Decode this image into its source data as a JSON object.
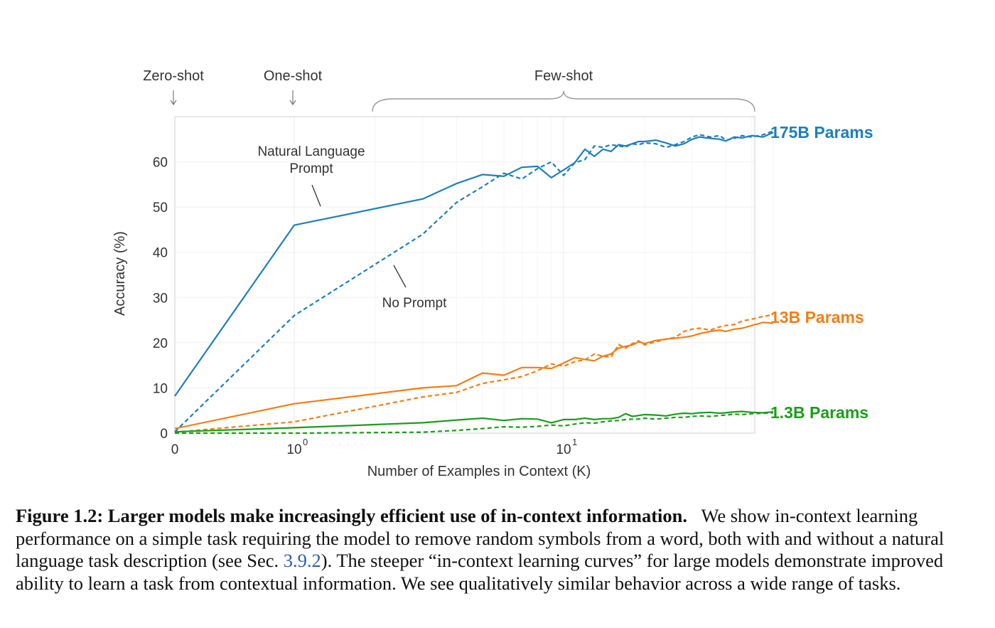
{
  "chart_data": {
    "type": "line",
    "xlabel": "Number of Examples in Context  (K)",
    "ylabel": "Accuracy (%)",
    "x_scale": "symlog",
    "xlim": [
      0,
      60
    ],
    "ylim": [
      0,
      70
    ],
    "x_ticks": [
      {
        "value": 0,
        "label": "0"
      },
      {
        "value": 1,
        "label": "10",
        "sup": "0"
      },
      {
        "value": 10,
        "label": "10",
        "sup": "1"
      }
    ],
    "y_ticks": [
      0,
      10,
      20,
      30,
      40,
      50,
      60
    ],
    "grid": true,
    "regions": [
      {
        "label": "Zero-shot",
        "x": 0,
        "style": "arrow"
      },
      {
        "label": "One-shot",
        "x": 1,
        "style": "arrow"
      },
      {
        "label": "Few-shot",
        "x_range": [
          2,
          60
        ],
        "style": "brace"
      }
    ],
    "model_labels": [
      {
        "label": "175B Params",
        "color": "#1f7fb8",
        "y": 66.5
      },
      {
        "label": "13B Params",
        "color": "#f07f16",
        "y": 25.5
      },
      {
        "label": "1.3B Params",
        "color": "#1e9c1e",
        "y": 4.6
      }
    ],
    "annotations": [
      {
        "text_lines": [
          "Natural Language",
          "Prompt"
        ],
        "target": "175B Params natural language prompt"
      },
      {
        "text_lines": [
          "No Prompt"
        ],
        "target": "175B Params no prompt"
      }
    ],
    "series": [
      {
        "model": "175B Params",
        "prompt": "Natural Language Prompt",
        "color": "#1f7fb8",
        "dash": "solid",
        "x": [
          0,
          1,
          3,
          4,
          5,
          6,
          7,
          8,
          9,
          10,
          11,
          12,
          13,
          14,
          15,
          16,
          17,
          18,
          19,
          20,
          22,
          24,
          26,
          28,
          30,
          32,
          35,
          38,
          40,
          43,
          46,
          50,
          55,
          60
        ],
        "y": [
          8.2,
          46,
          51.8,
          55.2,
          57.2,
          56.8,
          58.8,
          59,
          56.5,
          58.2,
          59.8,
          62.8,
          61.2,
          62.8,
          62.3,
          63.8,
          63.5,
          64,
          64.5,
          64.5,
          64.8,
          64.2,
          63.5,
          64,
          65,
          65.5,
          65.2,
          65,
          64.6,
          65.5,
          65.3,
          65.8,
          65.5,
          66.5
        ]
      },
      {
        "model": "175B Params",
        "prompt": "No Prompt",
        "color": "#1f7fb8",
        "dash": "dashed",
        "x": [
          0,
          1,
          3,
          4,
          5,
          6,
          7,
          8,
          9,
          10,
          11,
          12,
          13,
          14,
          15,
          16,
          17,
          18,
          19,
          20,
          22,
          24,
          26,
          28,
          30,
          32,
          35,
          38,
          40,
          43,
          46,
          50,
          55,
          60
        ],
        "y": [
          0.3,
          26,
          44,
          51,
          54.5,
          57.5,
          56.2,
          58.5,
          60,
          57,
          59.8,
          60.5,
          63.5,
          63.2,
          63.8,
          63.5,
          63.3,
          64,
          63.8,
          64.2,
          64,
          63.2,
          63.8,
          64.5,
          65.5,
          66,
          65.5,
          65.8,
          64.8,
          65.2,
          65.8,
          65.5,
          66,
          66.8
        ]
      },
      {
        "model": "13B Params",
        "prompt": "Natural Language Prompt",
        "color": "#f07f16",
        "dash": "solid",
        "x": [
          0,
          1,
          3,
          4,
          5,
          6,
          7,
          8,
          9,
          10,
          11,
          12,
          13,
          14,
          15,
          16,
          17,
          18,
          19,
          20,
          22,
          24,
          26,
          28,
          30,
          32,
          35,
          38,
          40,
          43,
          46,
          50,
          55,
          60
        ],
        "y": [
          1,
          6.5,
          10,
          10.5,
          13.3,
          12.8,
          14.5,
          14.5,
          14.3,
          15.5,
          16.7,
          16.3,
          16,
          17,
          17.5,
          18.8,
          19.2,
          19.5,
          20.2,
          19.8,
          20.5,
          20.8,
          21,
          21.2,
          21.5,
          22,
          22.5,
          22.8,
          22.5,
          23,
          23.2,
          23.8,
          24.5,
          24.3
        ]
      },
      {
        "model": "13B Params",
        "prompt": "No Prompt",
        "color": "#f07f16",
        "dash": "dashed",
        "x": [
          0,
          1,
          3,
          4,
          5,
          6,
          7,
          8,
          9,
          10,
          11,
          12,
          13,
          14,
          15,
          16,
          17,
          18,
          19,
          20,
          22,
          24,
          26,
          28,
          30,
          32,
          35,
          38,
          40,
          43,
          46,
          50,
          55,
          60
        ],
        "y": [
          0.2,
          2.5,
          8,
          9,
          11,
          11.8,
          12.5,
          13.8,
          15.3,
          14.8,
          15.8,
          16.2,
          17.5,
          17,
          16.8,
          19.6,
          18.8,
          19.8,
          20.4,
          19.5,
          20.2,
          20.8,
          21.2,
          22.5,
          23,
          23.2,
          22.8,
          23.5,
          23.8,
          24,
          24.8,
          25.2,
          25.8,
          26.2
        ]
      },
      {
        "model": "1.3B Params",
        "prompt": "Natural Language Prompt",
        "color": "#1e9c1e",
        "dash": "solid",
        "x": [
          0,
          1,
          3,
          4,
          5,
          6,
          7,
          8,
          9,
          10,
          11,
          12,
          13,
          14,
          15,
          16,
          17,
          18,
          19,
          20,
          22,
          24,
          26,
          28,
          30,
          32,
          35,
          38,
          40,
          43,
          46,
          50,
          55,
          60
        ],
        "y": [
          0.3,
          1.2,
          2.3,
          2.9,
          3.3,
          2.8,
          3.2,
          3.1,
          2.3,
          3,
          3,
          3.3,
          3,
          3.2,
          3.2,
          3.5,
          4.3,
          3.7,
          3.9,
          4.1,
          4,
          3.8,
          4.2,
          4.4,
          4.3,
          4.5,
          4.6,
          4.4,
          4.5,
          4.7,
          4.8,
          4.6,
          4.5,
          4.7
        ]
      },
      {
        "model": "1.3B Params",
        "prompt": "No Prompt",
        "color": "#1e9c1e",
        "dash": "dashed",
        "x": [
          0,
          1,
          3,
          4,
          5,
          6,
          7,
          8,
          9,
          10,
          11,
          12,
          13,
          14,
          15,
          16,
          17,
          18,
          19,
          20,
          22,
          24,
          26,
          28,
          30,
          32,
          35,
          38,
          40,
          43,
          46,
          50,
          55,
          60
        ],
        "y": [
          0,
          0,
          0.2,
          0.6,
          1,
          1.4,
          1.3,
          1.5,
          1.8,
          1.6,
          2,
          2.3,
          2.2,
          2.5,
          2.7,
          2.8,
          3,
          3.1,
          3.1,
          3.3,
          3.1,
          3.3,
          3.5,
          3.5,
          3.7,
          3.8,
          3.7,
          3.9,
          4,
          4.2,
          4.1,
          4.3,
          4.4,
          4.5
        ]
      }
    ]
  },
  "caption": {
    "lead": "Figure 1.2: Larger models make increasingly efficient use of in-context information.",
    "body_before_ref": "We show in-context learning performance on a simple task requiring the model to remove random symbols from a word, both with and without a natural language task description (see Sec.",
    "ref": "3.9.2",
    "body_after_ref": "). The steeper “in-context learning curves” for large models demonstrate improved ability to learn a task from contextual information. We see qualitatively similar behavior across a wide range of tasks."
  }
}
